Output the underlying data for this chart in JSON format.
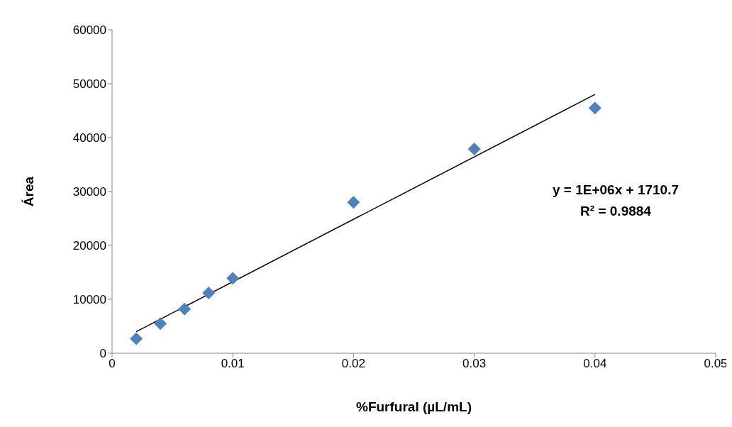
{
  "chart_data": {
    "type": "scatter",
    "xlabel": "%Furfural  (µL/mL)",
    "ylabel": "Área",
    "xlim": [
      0,
      0.05
    ],
    "xticks": [
      0,
      0.01,
      0.02,
      0.03,
      0.04,
      0.05
    ],
    "ylim": [
      0,
      60000
    ],
    "yticks": [
      0,
      10000,
      20000,
      30000,
      40000,
      50000,
      60000
    ],
    "marker": "diamond",
    "series": [
      {
        "color": "#4f81bd",
        "x": [
          0.002,
          0.004,
          0.006,
          0.008,
          0.01,
          0.02,
          0.03,
          0.04
        ],
        "values": [
          2700,
          5500,
          8200,
          11200,
          13900,
          28000,
          37900,
          45500
        ]
      },
      {
        "type": "line",
        "color": "#000000",
        "x": [
          0.002,
          0.04
        ],
        "values": [
          4000,
          48000
        ],
        "marker": "none"
      }
    ],
    "annotations": [
      "y = 1E+06x + 1710.7",
      "R² = 0.9884"
    ]
  }
}
